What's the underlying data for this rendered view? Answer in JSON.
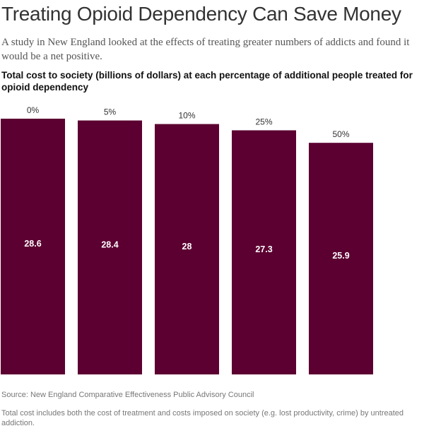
{
  "headline": "Treating Opioid Dependency Can Save Money",
  "dek": "A study in New England looked at the effects of treating greater numbers of addicts and found it would be a net positive.",
  "source": "Source: New England Comparative Effectiveness Public Advisory Council",
  "note": "Total cost includes both the cost of treatment and costs imposed on society (e.g. lost productivity, crime) by untreated addiction.",
  "colors": {
    "bar": "#5c0031",
    "bar_label": "#ffffff",
    "category_label": "#333333"
  },
  "chart_data": {
    "type": "bar",
    "title": "Total cost to society (billions of dollars) at each percentage of additional people treated for opioid dependency",
    "categories": [
      "0%",
      "5%",
      "10%",
      "25%",
      "50%"
    ],
    "values": [
      28.6,
      28.4,
      28,
      27.3,
      25.9
    ],
    "value_labels": [
      "28.6",
      "28.4",
      "28",
      "27.3",
      "25.9"
    ],
    "xlabel": "",
    "ylabel": "",
    "ylim": [
      0,
      28.6
    ],
    "grid": false,
    "legend": "none"
  }
}
